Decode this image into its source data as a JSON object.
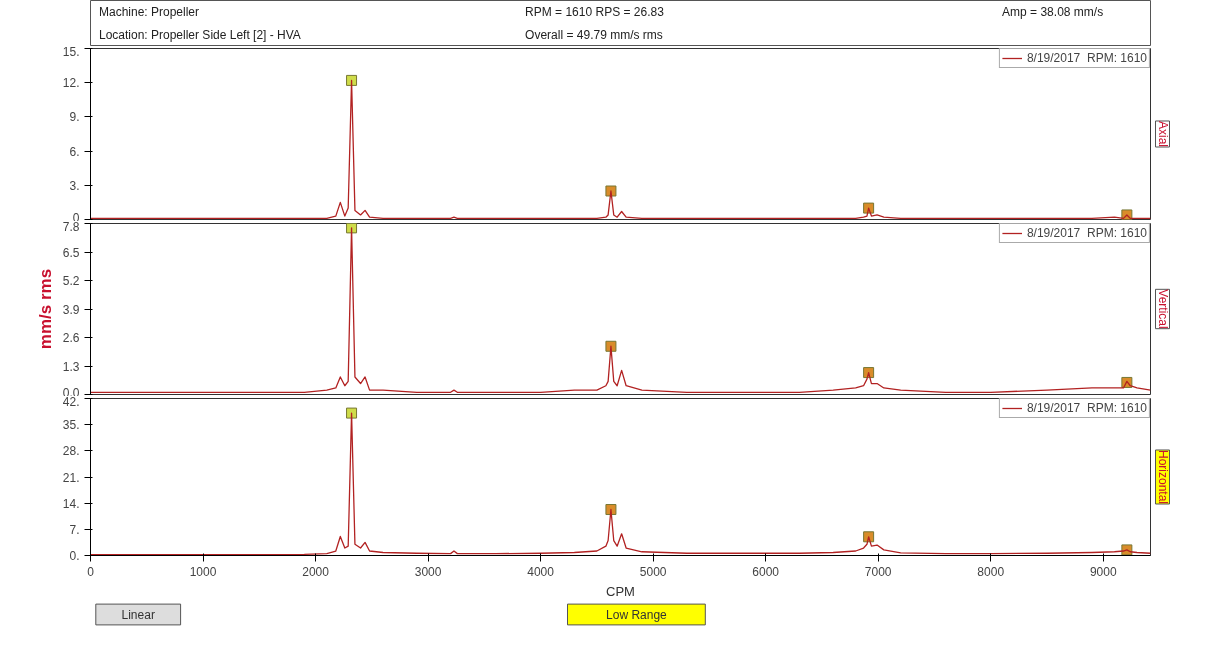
{
  "chart_data": [
    {
      "type": "line",
      "title": "Axial",
      "annotations": [
        "Machine:  Propeller",
        "Location: Propeller Side Left [2] - HVA",
        "RPM = 1610    RPS = 26.83",
        "Overall = 49.79 mm/s rms",
        "Amp = 38.08 mm/s"
      ],
      "xlim": [
        0,
        9420
      ],
      "ylim": [
        0,
        15
      ],
      "yticks": [
        {
          "value": 0,
          "label": "0"
        },
        {
          "value": 3,
          "label": "3."
        },
        {
          "value": 6,
          "label": "6."
        },
        {
          "value": 9,
          "label": "9."
        },
        {
          "value": 12,
          "label": "12."
        },
        {
          "value": 15,
          "label": "15."
        }
      ],
      "tick_labels": "y",
      "legend": "top right",
      "grid": false,
      "x": [
        0,
        100,
        400,
        800,
        1200,
        1600,
        1900,
        2100,
        2180,
        2220,
        2260,
        2290,
        2320,
        2350,
        2400,
        2440,
        2480,
        2600,
        2900,
        3200,
        3230,
        3260,
        3600,
        4000,
        4300,
        4500,
        4580,
        4600,
        4625,
        4650,
        4680,
        4720,
        4760,
        4900,
        5300,
        5800,
        6300,
        6600,
        6800,
        6870,
        6900,
        6915,
        6940,
        6990,
        7050,
        7200,
        7600,
        8000,
        8500,
        8900,
        9100,
        9180,
        9210,
        9240,
        9300,
        9420
      ],
      "series": [
        {
          "name": "8/19/2017  RPM: 1610",
          "color": "#b22222",
          "values": [
            0.1,
            0.1,
            0.1,
            0.1,
            0.1,
            0.1,
            0.1,
            0.1,
            0.3,
            1.5,
            0.3,
            1.0,
            12.2,
            0.8,
            0.4,
            0.8,
            0.2,
            0.1,
            0.1,
            0.1,
            0.2,
            0.1,
            0.1,
            0.1,
            0.1,
            0.1,
            0.2,
            0.4,
            2.5,
            0.4,
            0.2,
            0.7,
            0.2,
            0.1,
            0.1,
            0.1,
            0.1,
            0.1,
            0.1,
            0.2,
            0.3,
            1.0,
            0.3,
            0.4,
            0.2,
            0.1,
            0.1,
            0.1,
            0.1,
            0.1,
            0.2,
            0.1,
            0.4,
            0.1,
            0.1,
            0.1
          ]
        },
        {
          "type": "scatter",
          "marker": "square",
          "x": [
            2320,
            4625,
            6915,
            9210
          ],
          "colors": [
            "#cfdc4a",
            "#d98c2a",
            "#d98c2a",
            "#d98c2a"
          ],
          "values": [
            12.2,
            2.5,
            1.0,
            0.4
          ]
        }
      ]
    },
    {
      "type": "line",
      "title": "Vertical",
      "ylabel": "mm/s rms",
      "xlim": [
        0,
        9420
      ],
      "ylim": [
        0,
        7.8
      ],
      "yticks": [
        {
          "value": 0,
          "label": "0.0"
        },
        1.3,
        2.6,
        3.9,
        5.2,
        6.5,
        7.8
      ],
      "tick_labels": "y",
      "legend": "top right",
      "grid": false,
      "x": [
        0,
        100,
        400,
        800,
        1200,
        1600,
        1900,
        2100,
        2180,
        2220,
        2260,
        2290,
        2320,
        2350,
        2400,
        2440,
        2480,
        2600,
        2900,
        3200,
        3230,
        3260,
        3600,
        4000,
        4300,
        4500,
        4580,
        4600,
        4625,
        4650,
        4680,
        4720,
        4760,
        4900,
        5300,
        5800,
        6300,
        6600,
        6800,
        6870,
        6900,
        6915,
        6940,
        6990,
        7050,
        7200,
        7600,
        8000,
        8500,
        8900,
        9100,
        9180,
        9210,
        9240,
        9300,
        9420
      ],
      "series": [
        {
          "name": "8/19/2017  RPM: 1610",
          "color": "#b22222",
          "values": [
            0.1,
            0.1,
            0.1,
            0.1,
            0.1,
            0.1,
            0.1,
            0.2,
            0.3,
            0.8,
            0.4,
            0.6,
            7.6,
            0.8,
            0.5,
            0.8,
            0.2,
            0.2,
            0.1,
            0.1,
            0.2,
            0.1,
            0.1,
            0.1,
            0.2,
            0.2,
            0.4,
            0.6,
            2.2,
            0.6,
            0.4,
            1.1,
            0.4,
            0.2,
            0.1,
            0.1,
            0.1,
            0.2,
            0.3,
            0.4,
            0.7,
            1.0,
            0.5,
            0.5,
            0.3,
            0.2,
            0.1,
            0.1,
            0.2,
            0.3,
            0.3,
            0.3,
            0.6,
            0.4,
            0.3,
            0.2
          ]
        },
        {
          "type": "scatter",
          "marker": "square",
          "x": [
            2320,
            4625,
            6915,
            9210
          ],
          "colors": [
            "#cfdc4a",
            "#d98c2a",
            "#d98c2a",
            "#d98c2a"
          ],
          "values": [
            7.6,
            2.2,
            1.0,
            0.55
          ]
        }
      ]
    },
    {
      "type": "line",
      "title": "Horizontal",
      "xlabel": "CPM",
      "annotations": [
        "Linear",
        "Low Range"
      ],
      "xlim": [
        0,
        9420
      ],
      "xticks": [
        0,
        1000,
        2000,
        3000,
        4000,
        5000,
        6000,
        7000,
        8000,
        9000
      ],
      "ylim": [
        0,
        42
      ],
      "yticks": [
        {
          "value": 0,
          "label": "0."
        },
        {
          "value": 7,
          "label": "7."
        },
        {
          "value": 14,
          "label": "14."
        },
        {
          "value": 21,
          "label": "21."
        },
        {
          "value": 28,
          "label": "28."
        },
        {
          "value": 35,
          "label": "35."
        },
        {
          "value": 42,
          "label": "42."
        }
      ],
      "legend": "top right",
      "grid": false,
      "x": [
        0,
        100,
        400,
        800,
        1200,
        1600,
        1900,
        2100,
        2180,
        2220,
        2260,
        2290,
        2320,
        2350,
        2400,
        2440,
        2480,
        2600,
        2900,
        3200,
        3230,
        3260,
        3600,
        4000,
        4300,
        4500,
        4580,
        4600,
        4625,
        4650,
        4680,
        4720,
        4760,
        4900,
        5300,
        5800,
        6300,
        6600,
        6800,
        6870,
        6900,
        6915,
        6940,
        6990,
        7050,
        7200,
        7600,
        8000,
        8500,
        8900,
        9100,
        9180,
        9210,
        9240,
        9300,
        9420
      ],
      "series": [
        {
          "name": "8/19/2017  RPM: 1610",
          "color": "#b22222",
          "values": [
            0.2,
            0.2,
            0.2,
            0.2,
            0.2,
            0.2,
            0.3,
            0.5,
            1.2,
            5.1,
            2.0,
            2.5,
            38.1,
            3.0,
            2.0,
            3.5,
            1.2,
            0.8,
            0.6,
            0.5,
            1.2,
            0.5,
            0.5,
            0.6,
            0.8,
            1.2,
            2.5,
            4.0,
            12.3,
            4.0,
            2.5,
            5.8,
            2.0,
            1.0,
            0.6,
            0.6,
            0.6,
            0.8,
            1.2,
            2.0,
            3.0,
            5.0,
            2.5,
            2.8,
            1.5,
            0.7,
            0.5,
            0.5,
            0.6,
            0.8,
            1.0,
            1.2,
            1.5,
            1.0,
            0.8,
            0.6
          ]
        },
        {
          "type": "scatter",
          "marker": "square",
          "x": [
            2320,
            4625,
            6915,
            9210
          ],
          "colors": [
            "#cfdc4a",
            "#d98c2a",
            "#d98c2a",
            "#d98c2a"
          ],
          "values": [
            38.1,
            12.3,
            5.0,
            1.5
          ]
        }
      ]
    }
  ]
}
